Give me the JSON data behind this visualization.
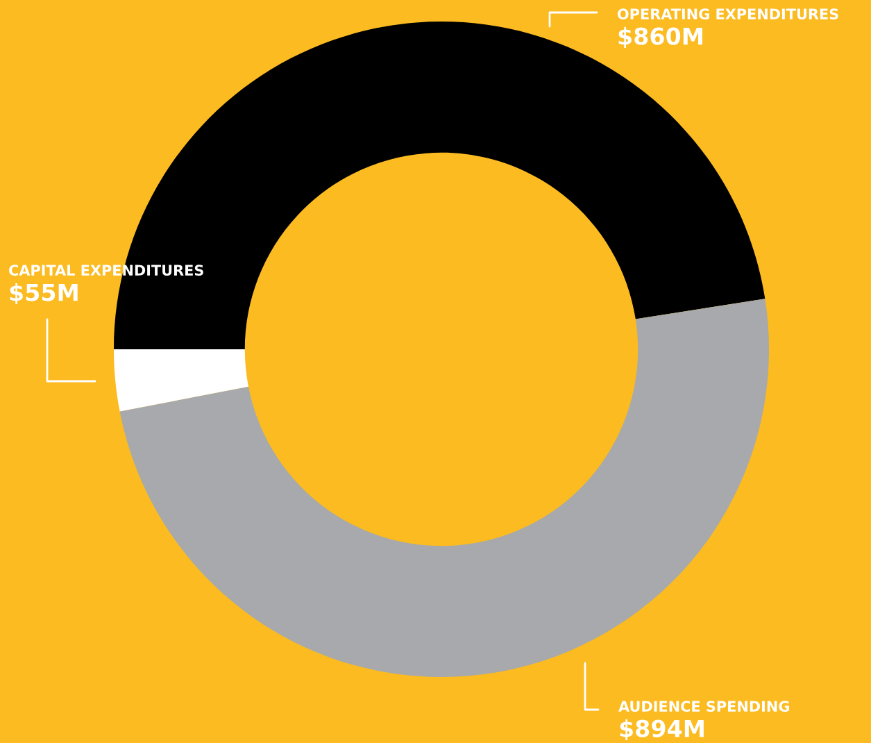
{
  "chart_data": {
    "type": "donut",
    "categories": [
      "OPERATING EXPENDITURES",
      "AUDIENCE SPENDING",
      "CAPITAL EXPENDITURES"
    ],
    "values": [
      860,
      894,
      55
    ],
    "colors": [
      "#000000",
      "#a7a9ac",
      "#ffffff"
    ],
    "value_labels": [
      "$860M",
      "$894M",
      "$55M"
    ],
    "legend": false
  }
}
